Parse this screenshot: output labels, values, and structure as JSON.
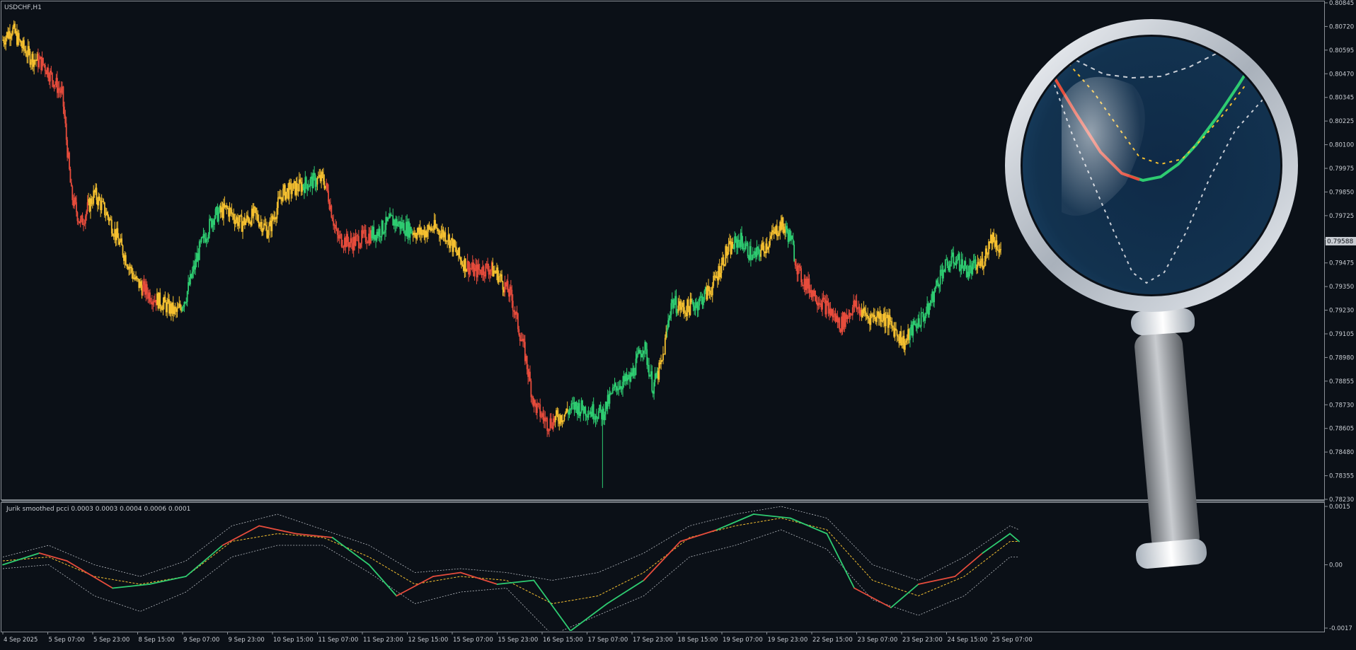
{
  "symbol_label": "USDCHF,H1",
  "indicator_label": "Jurik smoothed pcci 0.0003 0.0003 0.0004 0.0006 0.0001",
  "current_price_label": "0.79588",
  "colors": {
    "background": "#0b1017",
    "up": "#2ecc71",
    "down": "#e74c3c",
    "neutral": "#f5c030",
    "axis_text": "#c8ccd2",
    "grid_line": "#8a8f96"
  },
  "chart_data": [
    {
      "type": "candlestick",
      "title": "USDCHF,H1",
      "ylim": [
        0.7823,
        0.80845
      ],
      "y_ticks": [
        "0.80845",
        "0.80720",
        "0.80595",
        "0.80470",
        "0.80345",
        "0.80225",
        "0.80100",
        "0.79975",
        "0.79850",
        "0.79725",
        "0.79600",
        "0.79475",
        "0.79350",
        "0.79230",
        "0.79105",
        "0.78980",
        "0.78855",
        "0.78730",
        "0.78605",
        "0.78480",
        "0.78355",
        "0.78230"
      ],
      "x_ticks": [
        "4 Sep 2025",
        "5 Sep 07:00",
        "5 Sep 23:00",
        "8 Sep 15:00",
        "9 Sep 07:00",
        "9 Sep 23:00",
        "10 Sep 15:00",
        "11 Sep 07:00",
        "11 Sep 23:00",
        "12 Sep 15:00",
        "15 Sep 07:00",
        "15 Sep 23:00",
        "16 Sep 15:00",
        "17 Sep 07:00",
        "17 Sep 23:00",
        "18 Sep 15:00",
        "19 Sep 07:00",
        "19 Sep 23:00",
        "22 Sep 15:00",
        "23 Sep 07:00",
        "23 Sep 23:00",
        "24 Sep 15:00",
        "25 Sep 07:00"
      ],
      "last_price": 0.79588,
      "price_path": [
        {
          "x": 0,
          "y": 0.8065,
          "c": "neutral"
        },
        {
          "x": 2,
          "y": 0.8071,
          "c": "neutral"
        },
        {
          "x": 4,
          "y": 0.8062,
          "c": "neutral"
        },
        {
          "x": 6,
          "y": 0.8056,
          "c": "neutral"
        },
        {
          "x": 9,
          "y": 0.8052,
          "c": "down"
        },
        {
          "x": 13,
          "y": 0.8036,
          "c": "down"
        },
        {
          "x": 15,
          "y": 0.7983,
          "c": "down"
        },
        {
          "x": 17,
          "y": 0.7968,
          "c": "down"
        },
        {
          "x": 20,
          "y": 0.7984,
          "c": "neutral"
        },
        {
          "x": 23,
          "y": 0.7972,
          "c": "neutral"
        },
        {
          "x": 26,
          "y": 0.7955,
          "c": "neutral"
        },
        {
          "x": 29,
          "y": 0.7938,
          "c": "neutral"
        },
        {
          "x": 32,
          "y": 0.7931,
          "c": "down"
        },
        {
          "x": 35,
          "y": 0.7926,
          "c": "neutral"
        },
        {
          "x": 38,
          "y": 0.7921,
          "c": "neutral"
        },
        {
          "x": 40,
          "y": 0.793,
          "c": "up"
        },
        {
          "x": 43,
          "y": 0.7955,
          "c": "up"
        },
        {
          "x": 46,
          "y": 0.7972,
          "c": "up"
        },
        {
          "x": 49,
          "y": 0.7976,
          "c": "neutral"
        },
        {
          "x": 52,
          "y": 0.7968,
          "c": "neutral"
        },
        {
          "x": 55,
          "y": 0.7973,
          "c": "neutral"
        },
        {
          "x": 58,
          "y": 0.7964,
          "c": "neutral"
        },
        {
          "x": 61,
          "y": 0.7984,
          "c": "neutral"
        },
        {
          "x": 64,
          "y": 0.7987,
          "c": "neutral"
        },
        {
          "x": 67,
          "y": 0.799,
          "c": "up"
        },
        {
          "x": 70,
          "y": 0.7992,
          "c": "neutral"
        },
        {
          "x": 71,
          "y": 0.7984,
          "c": "down"
        },
        {
          "x": 73,
          "y": 0.7961,
          "c": "down"
        },
        {
          "x": 76,
          "y": 0.7958,
          "c": "down"
        },
        {
          "x": 79,
          "y": 0.7961,
          "c": "down"
        },
        {
          "x": 82,
          "y": 0.7964,
          "c": "up"
        },
        {
          "x": 85,
          "y": 0.797,
          "c": "up"
        },
        {
          "x": 88,
          "y": 0.7966,
          "c": "up"
        },
        {
          "x": 91,
          "y": 0.7963,
          "c": "neutral"
        },
        {
          "x": 94,
          "y": 0.7966,
          "c": "neutral"
        },
        {
          "x": 97,
          "y": 0.7962,
          "c": "neutral"
        },
        {
          "x": 100,
          "y": 0.7949,
          "c": "neutral"
        },
        {
          "x": 103,
          "y": 0.7943,
          "c": "down"
        },
        {
          "x": 106,
          "y": 0.7945,
          "c": "down"
        },
        {
          "x": 108,
          "y": 0.7942,
          "c": "neutral"
        },
        {
          "x": 111,
          "y": 0.793,
          "c": "down"
        },
        {
          "x": 114,
          "y": 0.79,
          "c": "down"
        },
        {
          "x": 116,
          "y": 0.7873,
          "c": "down"
        },
        {
          "x": 119,
          "y": 0.7863,
          "c": "down"
        },
        {
          "x": 122,
          "y": 0.7867,
          "c": "neutral"
        },
        {
          "x": 125,
          "y": 0.7872,
          "c": "up"
        },
        {
          "x": 128,
          "y": 0.787,
          "c": "up"
        },
        {
          "x": 131,
          "y": 0.7868,
          "c": "up"
        },
        {
          "x": 134,
          "y": 0.7883,
          "c": "up"
        },
        {
          "x": 137,
          "y": 0.7886,
          "c": "up"
        },
        {
          "x": 140,
          "y": 0.7905,
          "c": "up"
        },
        {
          "x": 142,
          "y": 0.7882,
          "c": "up"
        },
        {
          "x": 144,
          "y": 0.7895,
          "c": "neutral"
        },
        {
          "x": 146,
          "y": 0.7927,
          "c": "up"
        },
        {
          "x": 149,
          "y": 0.7923,
          "c": "neutral"
        },
        {
          "x": 152,
          "y": 0.7927,
          "c": "up"
        },
        {
          "x": 155,
          "y": 0.7935,
          "c": "neutral"
        },
        {
          "x": 158,
          "y": 0.7953,
          "c": "neutral"
        },
        {
          "x": 161,
          "y": 0.796,
          "c": "up"
        },
        {
          "x": 164,
          "y": 0.795,
          "c": "up"
        },
        {
          "x": 167,
          "y": 0.7958,
          "c": "neutral"
        },
        {
          "x": 170,
          "y": 0.7968,
          "c": "neutral"
        },
        {
          "x": 172,
          "y": 0.7961,
          "c": "up"
        },
        {
          "x": 174,
          "y": 0.7941,
          "c": "down"
        },
        {
          "x": 177,
          "y": 0.7932,
          "c": "down"
        },
        {
          "x": 180,
          "y": 0.7924,
          "c": "down"
        },
        {
          "x": 183,
          "y": 0.7915,
          "c": "down"
        },
        {
          "x": 186,
          "y": 0.7925,
          "c": "down"
        },
        {
          "x": 189,
          "y": 0.7919,
          "c": "neutral"
        },
        {
          "x": 192,
          "y": 0.792,
          "c": "neutral"
        },
        {
          "x": 195,
          "y": 0.7912,
          "c": "neutral"
        },
        {
          "x": 197,
          "y": 0.7905,
          "c": "neutral"
        },
        {
          "x": 199,
          "y": 0.7914,
          "c": "up"
        },
        {
          "x": 202,
          "y": 0.7922,
          "c": "up"
        },
        {
          "x": 205,
          "y": 0.7943,
          "c": "up"
        },
        {
          "x": 208,
          "y": 0.795,
          "c": "up"
        },
        {
          "x": 211,
          "y": 0.7943,
          "c": "up"
        },
        {
          "x": 214,
          "y": 0.7948,
          "c": "neutral"
        },
        {
          "x": 216,
          "y": 0.7962,
          "c": "neutral"
        },
        {
          "x": 218,
          "y": 0.7954,
          "c": "neutral"
        }
      ]
    },
    {
      "type": "line",
      "title": "Jurik smoothed pcci 0.0003 0.0003 0.0004 0.0006 0.0001",
      "ylim": [
        -0.0017,
        0.0015
      ],
      "y_ticks": [
        "0.0015",
        "0.00",
        "-0.0017"
      ],
      "series": [
        {
          "role": "main",
          "values": [
            [
              0,
              0.0
            ],
            [
              8,
              0.0003
            ],
            [
              14,
              0.0001
            ],
            [
              24,
              -0.0006
            ],
            [
              32,
              -0.0005
            ],
            [
              40,
              -0.0003
            ],
            [
              48,
              0.0005
            ],
            [
              56,
              0.001
            ],
            [
              64,
              0.0008
            ],
            [
              72,
              0.0007
            ],
            [
              80,
              0.0
            ],
            [
              86,
              -0.0008
            ],
            [
              94,
              -0.0003
            ],
            [
              100,
              -0.0002
            ],
            [
              108,
              -0.0005
            ],
            [
              116,
              -0.0004
            ],
            [
              124,
              -0.0017
            ],
            [
              132,
              -0.001
            ],
            [
              140,
              -0.0004
            ],
            [
              148,
              0.0006
            ],
            [
              156,
              0.0009
            ],
            [
              164,
              0.0013
            ],
            [
              172,
              0.0012
            ],
            [
              180,
              0.0008
            ],
            [
              186,
              -0.0006
            ],
            [
              194,
              -0.0011
            ],
            [
              200,
              -0.0005
            ],
            [
              208,
              -0.0003
            ],
            [
              214,
              0.0003
            ],
            [
              220,
              0.0008
            ],
            [
              222,
              0.0006
            ]
          ],
          "colors_by_segment": [
            "up",
            "down",
            "down",
            "up",
            "up",
            "up",
            "down",
            "down",
            "down",
            "up",
            "up",
            "down",
            "down",
            "down",
            "up",
            "up",
            "up",
            "up",
            "down",
            "down",
            "up",
            "up",
            "up",
            "up",
            "down"
          ]
        },
        {
          "role": "signal",
          "values": [
            [
              0,
              0.0001
            ],
            [
              10,
              0.0002
            ],
            [
              20,
              -0.0003
            ],
            [
              30,
              -0.0005
            ],
            [
              40,
              -0.0003
            ],
            [
              50,
              0.0006
            ],
            [
              60,
              0.0008
            ],
            [
              70,
              0.0007
            ],
            [
              80,
              0.0002
            ],
            [
              90,
              -0.0005
            ],
            [
              100,
              -0.0003
            ],
            [
              110,
              -0.0004
            ],
            [
              120,
              -0.001
            ],
            [
              130,
              -0.0008
            ],
            [
              140,
              -0.0002
            ],
            [
              150,
              0.0007
            ],
            [
              160,
              0.001
            ],
            [
              170,
              0.0012
            ],
            [
              180,
              0.0009
            ],
            [
              190,
              -0.0004
            ],
            [
              200,
              -0.0008
            ],
            [
              210,
              -0.0003
            ],
            [
              220,
              0.0006
            ],
            [
              222,
              0.0006
            ]
          ]
        },
        {
          "role": "upper_band",
          "values": [
            [
              0,
              0.0002
            ],
            [
              10,
              0.0005
            ],
            [
              20,
              0.0
            ],
            [
              30,
              -0.0003
            ],
            [
              40,
              0.0001
            ],
            [
              50,
              0.001
            ],
            [
              60,
              0.0013
            ],
            [
              70,
              0.0009
            ],
            [
              80,
              0.0005
            ],
            [
              90,
              -0.0002
            ],
            [
              100,
              -0.0001
            ],
            [
              110,
              -0.0002
            ],
            [
              120,
              -0.0004
            ],
            [
              130,
              -0.0002
            ],
            [
              140,
              0.0003
            ],
            [
              150,
              0.001
            ],
            [
              160,
              0.0013
            ],
            [
              170,
              0.0015
            ],
            [
              180,
              0.0012
            ],
            [
              190,
              0.0
            ],
            [
              200,
              -0.0004
            ],
            [
              210,
              0.0002
            ],
            [
              220,
              0.001
            ],
            [
              222,
              0.0009
            ]
          ]
        },
        {
          "role": "lower_band",
          "values": [
            [
              0,
              -0.0001
            ],
            [
              10,
              0.0
            ],
            [
              20,
              -0.0008
            ],
            [
              30,
              -0.0012
            ],
            [
              40,
              -0.0007
            ],
            [
              50,
              0.0002
            ],
            [
              60,
              0.0005
            ],
            [
              70,
              0.0005
            ],
            [
              80,
              -0.0002
            ],
            [
              90,
              -0.001
            ],
            [
              100,
              -0.0007
            ],
            [
              110,
              -0.0006
            ],
            [
              120,
              -0.0018
            ],
            [
              130,
              -0.0013
            ],
            [
              140,
              -0.0008
            ],
            [
              150,
              0.0002
            ],
            [
              160,
              0.0005
            ],
            [
              170,
              0.0009
            ],
            [
              180,
              0.0004
            ],
            [
              190,
              -0.0009
            ],
            [
              200,
              -0.0013
            ],
            [
              210,
              -0.0008
            ],
            [
              220,
              0.0002
            ],
            [
              222,
              0.0002
            ]
          ]
        }
      ]
    }
  ]
}
